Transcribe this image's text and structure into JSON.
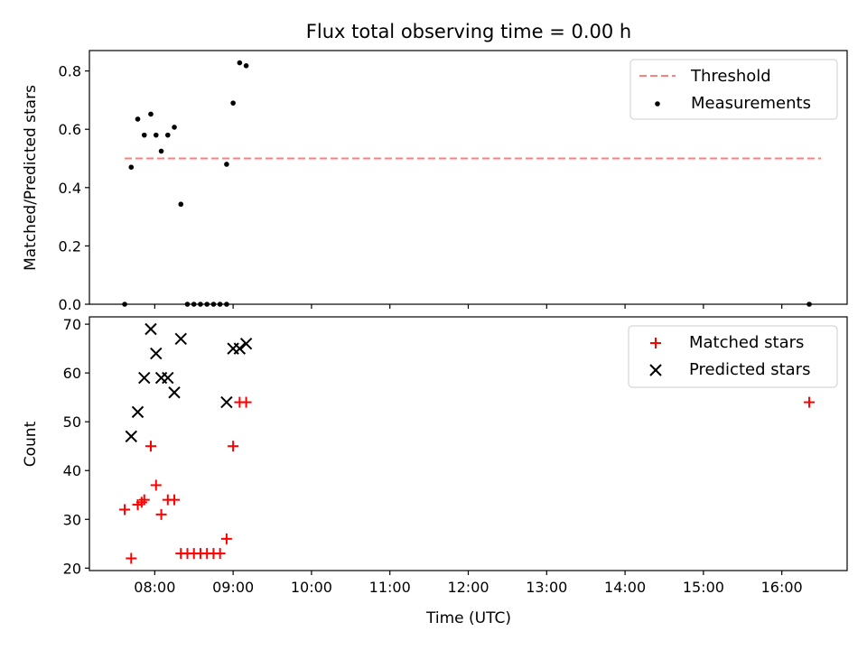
{
  "chart_data": [
    {
      "type": "scatter",
      "title": "Flux total observing time = 0.00 h",
      "xlabel": "",
      "ylabel": "Matched/Predicted stars",
      "xlim": [
        "07:10",
        "16:50"
      ],
      "ylim": [
        0,
        0.87
      ],
      "yticks": [
        0.0,
        0.2,
        0.4,
        0.6,
        0.8
      ],
      "ytick_labels": [
        "0.0",
        "0.2",
        "0.4",
        "0.6",
        "0.8"
      ],
      "legend_position": "top-right",
      "grid": false,
      "threshold": {
        "name": "Threshold",
        "value": 0.5,
        "x_start": "07:37",
        "x_end": "16:30",
        "color": "#ff7f7f",
        "style": "dashed"
      },
      "series": [
        {
          "name": "Measurements",
          "marker": "dot",
          "color": "#000000",
          "points": [
            {
              "x": "07:37",
              "y": 0.0
            },
            {
              "x": "07:42",
              "y": 0.47
            },
            {
              "x": "07:47",
              "y": 0.635
            },
            {
              "x": "07:52",
              "y": 0.58
            },
            {
              "x": "07:57",
              "y": 0.652
            },
            {
              "x": "08:01",
              "y": 0.58
            },
            {
              "x": "08:05",
              "y": 0.525
            },
            {
              "x": "08:10",
              "y": 0.58
            },
            {
              "x": "08:15",
              "y": 0.607
            },
            {
              "x": "08:20",
              "y": 0.343
            },
            {
              "x": "08:25",
              "y": 0.0
            },
            {
              "x": "08:30",
              "y": 0.0
            },
            {
              "x": "08:35",
              "y": 0.0
            },
            {
              "x": "08:40",
              "y": 0.0
            },
            {
              "x": "08:45",
              "y": 0.0
            },
            {
              "x": "08:50",
              "y": 0.0
            },
            {
              "x": "08:55",
              "y": 0.0
            },
            {
              "x": "08:55",
              "y": 0.48
            },
            {
              "x": "09:00",
              "y": 0.69
            },
            {
              "x": "09:05",
              "y": 0.828
            },
            {
              "x": "09:10",
              "y": 0.818
            },
            {
              "x": "16:21",
              "y": 0.0
            }
          ]
        }
      ]
    },
    {
      "type": "scatter",
      "title": "",
      "xlabel": "Time (UTC)",
      "ylabel": "Count",
      "xlim": [
        "07:10",
        "16:50"
      ],
      "ylim": [
        19.5,
        71.5
      ],
      "xticks": [
        "08:00",
        "09:00",
        "10:00",
        "11:00",
        "12:00",
        "13:00",
        "14:00",
        "15:00",
        "16:00"
      ],
      "yticks": [
        20,
        30,
        40,
        50,
        60,
        70
      ],
      "ytick_labels": [
        "20",
        "30",
        "40",
        "50",
        "60",
        "70"
      ],
      "legend_position": "top-right",
      "grid": false,
      "series": [
        {
          "name": "Matched stars",
          "marker": "plus",
          "color": "#ff0000",
          "points": [
            {
              "x": "07:37",
              "y": 32
            },
            {
              "x": "07:42",
              "y": 22
            },
            {
              "x": "07:47",
              "y": 33
            },
            {
              "x": "07:50",
              "y": 33.5
            },
            {
              "x": "07:52",
              "y": 34
            },
            {
              "x": "07:57",
              "y": 45
            },
            {
              "x": "08:01",
              "y": 37
            },
            {
              "x": "08:05",
              "y": 31
            },
            {
              "x": "08:10",
              "y": 34
            },
            {
              "x": "08:15",
              "y": 34
            },
            {
              "x": "08:20",
              "y": 23
            },
            {
              "x": "08:25",
              "y": 23
            },
            {
              "x": "08:30",
              "y": 23
            },
            {
              "x": "08:35",
              "y": 23
            },
            {
              "x": "08:40",
              "y": 23
            },
            {
              "x": "08:45",
              "y": 23
            },
            {
              "x": "08:50",
              "y": 23
            },
            {
              "x": "08:55",
              "y": 26
            },
            {
              "x": "09:00",
              "y": 45
            },
            {
              "x": "09:05",
              "y": 54
            },
            {
              "x": "09:10",
              "y": 54
            },
            {
              "x": "16:21",
              "y": 54
            }
          ]
        },
        {
          "name": "Predicted stars",
          "marker": "x",
          "color": "#000000",
          "points": [
            {
              "x": "07:42",
              "y": 47
            },
            {
              "x": "07:47",
              "y": 52
            },
            {
              "x": "07:52",
              "y": 59
            },
            {
              "x": "07:57",
              "y": 69
            },
            {
              "x": "08:01",
              "y": 64
            },
            {
              "x": "08:05",
              "y": 59
            },
            {
              "x": "08:10",
              "y": 59
            },
            {
              "x": "08:15",
              "y": 56
            },
            {
              "x": "08:20",
              "y": 67
            },
            {
              "x": "08:55",
              "y": 54
            },
            {
              "x": "09:00",
              "y": 65
            },
            {
              "x": "09:05",
              "y": 65
            },
            {
              "x": "09:10",
              "y": 66
            }
          ]
        }
      ]
    }
  ]
}
